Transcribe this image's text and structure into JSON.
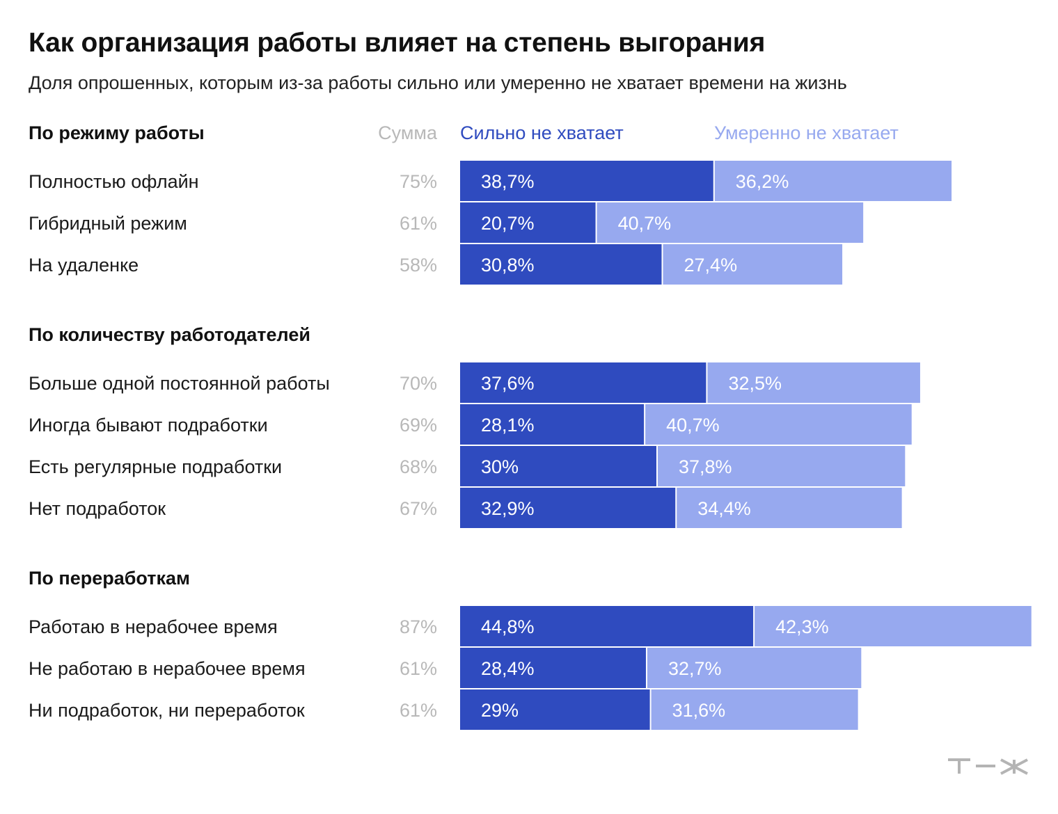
{
  "chart_data": {
    "type": "bar",
    "orientation": "horizontal",
    "stacked": true,
    "title": "Как организация работы влияет на степень выгорания",
    "subtitle": "Доля опрошенных, которым из-за работы сильно или умеренно не хватает времени на жизнь",
    "sum_header": "Сумма",
    "series": [
      {
        "name": "Сильно не хватает",
        "color": "#2f4bbf"
      },
      {
        "name": "Умеренно не хватает",
        "color": "#97a9ef"
      }
    ],
    "groups": [
      {
        "title": "По режиму работы",
        "rows": [
          {
            "label": "Полностью офлайн",
            "sum": "75%",
            "values": [
              38.7,
              36.2
            ],
            "value_labels": [
              "38,7%",
              "36,2%"
            ]
          },
          {
            "label": "Гибридный режим",
            "sum": "61%",
            "values": [
              20.7,
              40.7
            ],
            "value_labels": [
              "20,7%",
              "40,7%"
            ]
          },
          {
            "label": "На удаленке",
            "sum": "58%",
            "values": [
              30.8,
              27.4
            ],
            "value_labels": [
              "30,8%",
              "27,4%"
            ]
          }
        ]
      },
      {
        "title": "По количеству работодателей",
        "rows": [
          {
            "label": "Больше одной постоянной работы",
            "sum": "70%",
            "values": [
              37.6,
              32.5
            ],
            "value_labels": [
              "37,6%",
              "32,5%"
            ]
          },
          {
            "label": "Иногда бывают подработки",
            "sum": "69%",
            "values": [
              28.1,
              40.7
            ],
            "value_labels": [
              "28,1%",
              "40,7%"
            ]
          },
          {
            "label": "Есть регулярные подработки",
            "sum": "68%",
            "values": [
              30,
              37.8
            ],
            "value_labels": [
              "30%",
              "37,8%"
            ]
          },
          {
            "label": "Нет подработок",
            "sum": "67%",
            "values": [
              32.9,
              34.4
            ],
            "value_labels": [
              "32,9%",
              "34,4%"
            ]
          }
        ]
      },
      {
        "title": "По переработкам",
        "rows": [
          {
            "label": "Работаю в нерабочее время",
            "sum": "87%",
            "values": [
              44.8,
              42.3
            ],
            "value_labels": [
              "44,8%",
              "42,3%"
            ]
          },
          {
            "label": "Не работаю в нерабочее время",
            "sum": "61%",
            "values": [
              28.4,
              32.7
            ],
            "value_labels": [
              "28,4%",
              "32,7%"
            ]
          },
          {
            "label": "Ни подработок, ни переработок",
            "sum": "61%",
            "values": [
              29,
              31.6
            ],
            "value_labels": [
              "29%",
              "31,6%"
            ]
          }
        ]
      }
    ],
    "legend_position": "top",
    "grid": false
  },
  "logo": {
    "name": "tzh-logo-icon",
    "color": "#b4b4b4"
  }
}
